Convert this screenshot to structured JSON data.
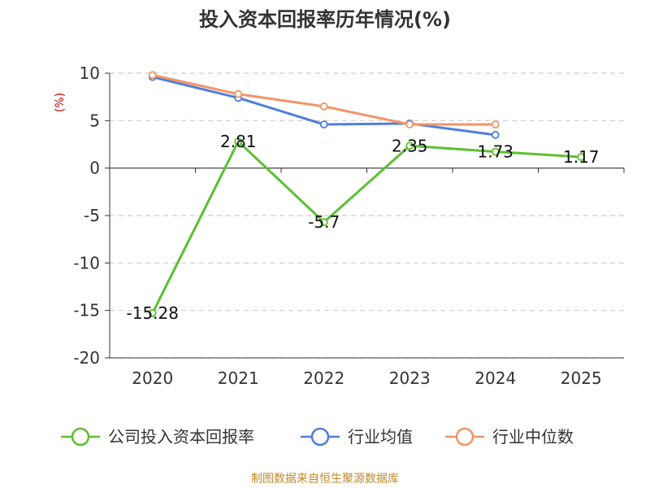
{
  "chart_data": {
    "type": "line",
    "title": "投入资本回报率历年情况(%)",
    "ylabel": "(%)",
    "categories": [
      "2020",
      "2021",
      "2022",
      "2023",
      "2024",
      "2025"
    ],
    "ylim": [
      -20,
      10
    ],
    "yticks": [
      10,
      5,
      0,
      -5,
      -10,
      -15,
      -20
    ],
    "grid": true,
    "legend_position": "bottom",
    "series": [
      {
        "name": "公司投入资本回报率",
        "color": "#5cc030",
        "values": [
          -15.28,
          2.81,
          -5.7,
          2.35,
          1.73,
          1.17
        ],
        "labels": [
          "-15.28",
          "2.81",
          "-5.7",
          "2.35",
          "1.73",
          "1.17"
        ]
      },
      {
        "name": "行业均值",
        "color": "#4f7fdc",
        "values": [
          9.6,
          7.4,
          4.6,
          4.7,
          3.5,
          null
        ]
      },
      {
        "name": "行业中位数",
        "color": "#f39466",
        "values": [
          9.8,
          7.8,
          6.5,
          4.6,
          4.6,
          null
        ]
      }
    ]
  },
  "footer": {
    "source": "制图数据来自恒生聚源数据库"
  }
}
